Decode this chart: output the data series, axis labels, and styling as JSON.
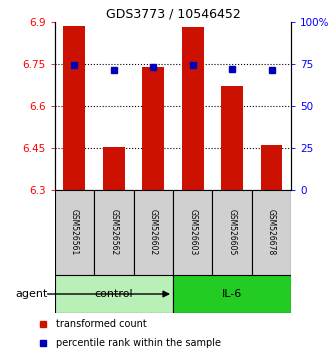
{
  "title": "GDS3773 / 10546452",
  "samples": [
    "GSM526561",
    "GSM526562",
    "GSM526602",
    "GSM526603",
    "GSM526605",
    "GSM526678"
  ],
  "bar_heights": [
    6.885,
    6.452,
    6.738,
    6.882,
    6.672,
    6.462
  ],
  "percentile_values": [
    6.748,
    6.728,
    6.738,
    6.748,
    6.733,
    6.73
  ],
  "ylim_left": [
    6.3,
    6.9
  ],
  "ylim_right": [
    0,
    100
  ],
  "yticks_left": [
    6.3,
    6.45,
    6.6,
    6.75,
    6.9
  ],
  "ytick_labels_left": [
    "6.3",
    "6.45",
    "6.6",
    "6.75",
    "6.9"
  ],
  "yticks_right": [
    0,
    25,
    50,
    75,
    100
  ],
  "ytick_labels_right": [
    "0",
    "25",
    "50",
    "75",
    "100%"
  ],
  "hlines": [
    6.75,
    6.6,
    6.45
  ],
  "groups": [
    {
      "label": "control",
      "indices": [
        0,
        1,
        2
      ],
      "color": "#b8f0b8"
    },
    {
      "label": "IL-6",
      "indices": [
        3,
        4,
        5
      ],
      "color": "#22cc22"
    }
  ],
  "bar_color": "#cc1100",
  "blue_color": "#0000bb",
  "bar_width": 0.55,
  "agent_label": "agent",
  "legend_items": [
    {
      "label": "transformed count",
      "color": "#cc1100"
    },
    {
      "label": "percentile rank within the sample",
      "color": "#0000bb"
    }
  ],
  "sample_box_color": "#d0d0d0",
  "title_fontsize": 9,
  "tick_fontsize": 7.5,
  "sample_fontsize": 5.5,
  "group_fontsize": 8,
  "legend_fontsize": 7,
  "agent_fontsize": 8
}
